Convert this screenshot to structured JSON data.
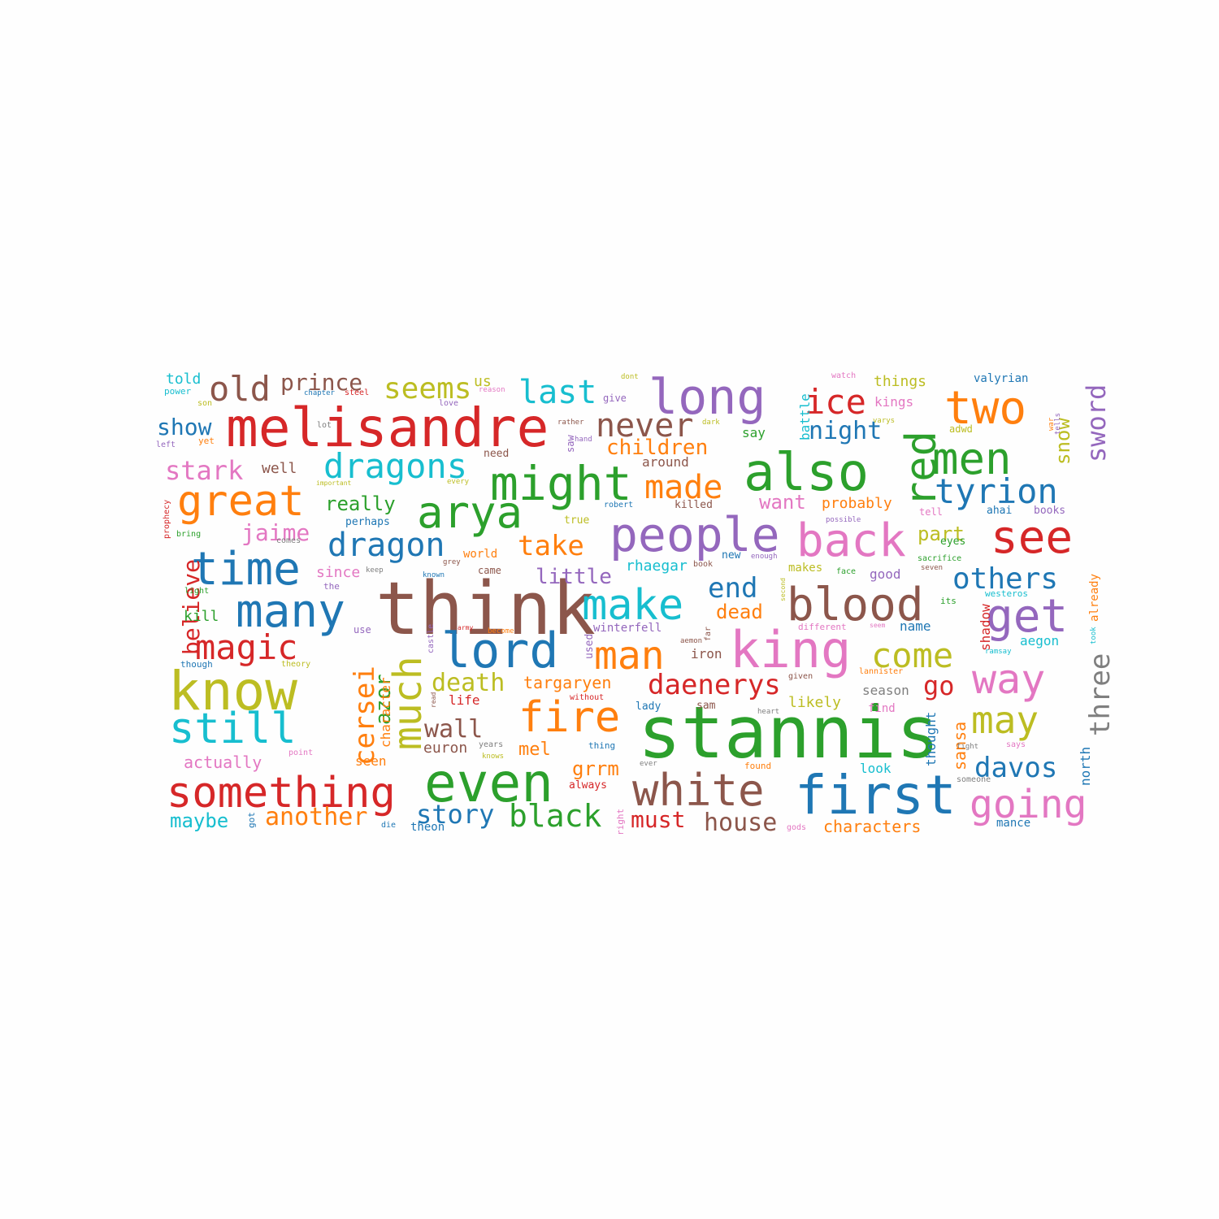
{
  "palette": {
    "blue": "#1f77b4",
    "orange": "#ff7f0e",
    "green": "#2ca02c",
    "red": "#d62728",
    "purple": "#9467bd",
    "brown": "#8c564b",
    "pink": "#e377c2",
    "gray": "#7f7f7f",
    "olive": "#bcbd22",
    "cyan": "#17becf"
  },
  "words": [
    {
      "text": "stannis",
      "color": "green"
    },
    {
      "text": "think",
      "color": "brown"
    },
    {
      "text": "melisandre",
      "color": "red"
    },
    {
      "text": "know",
      "color": "olive"
    },
    {
      "text": "also",
      "color": "green"
    },
    {
      "text": "even",
      "color": "green"
    },
    {
      "text": "first",
      "color": "blue"
    },
    {
      "text": "king",
      "color": "pink"
    },
    {
      "text": "people",
      "color": "purple"
    },
    {
      "text": "might",
      "color": "green"
    },
    {
      "text": "blood",
      "color": "brown"
    },
    {
      "text": "white",
      "color": "brown"
    },
    {
      "text": "something",
      "color": "red"
    },
    {
      "text": "back",
      "color": "pink"
    },
    {
      "text": "much",
      "color": "olive"
    },
    {
      "text": "lord",
      "color": "blue"
    },
    {
      "text": "long",
      "color": "purple"
    },
    {
      "text": "arya",
      "color": "green"
    },
    {
      "text": "fire",
      "color": "orange"
    },
    {
      "text": "still",
      "color": "cyan"
    },
    {
      "text": "make",
      "color": "cyan"
    },
    {
      "text": "many",
      "color": "blue"
    },
    {
      "text": "time",
      "color": "blue"
    },
    {
      "text": "great",
      "color": "orange"
    },
    {
      "text": "see",
      "color": "red"
    },
    {
      "text": "get",
      "color": "purple"
    },
    {
      "text": "way",
      "color": "pink"
    },
    {
      "text": "men",
      "color": "green"
    },
    {
      "text": "two",
      "color": "orange"
    },
    {
      "text": "red",
      "color": "green"
    },
    {
      "text": "man",
      "color": "orange"
    },
    {
      "text": "going",
      "color": "pink"
    },
    {
      "text": "may",
      "color": "olive"
    },
    {
      "text": "dragons",
      "color": "cyan"
    },
    {
      "text": "tyrion",
      "color": "blue"
    },
    {
      "text": "magic",
      "color": "red"
    },
    {
      "text": "come",
      "color": "olive"
    },
    {
      "text": "never",
      "color": "brown"
    },
    {
      "text": "last",
      "color": "cyan"
    },
    {
      "text": "old",
      "color": "brown"
    },
    {
      "text": "ice",
      "color": "red"
    },
    {
      "text": "black",
      "color": "green"
    },
    {
      "text": "dragon",
      "color": "blue"
    },
    {
      "text": "made",
      "color": "orange"
    },
    {
      "text": "three",
      "color": "gray"
    },
    {
      "text": "daenerys",
      "color": "red"
    },
    {
      "text": "others",
      "color": "blue"
    },
    {
      "text": "seems",
      "color": "olive"
    },
    {
      "text": "cersei",
      "color": "orange"
    },
    {
      "text": "take",
      "color": "orange"
    },
    {
      "text": "davos",
      "color": "blue"
    },
    {
      "text": "story",
      "color": "blue"
    },
    {
      "text": "stark",
      "color": "pink"
    },
    {
      "text": "house",
      "color": "brown"
    },
    {
      "text": "death",
      "color": "olive"
    },
    {
      "text": "sword",
      "color": "purple"
    },
    {
      "text": "wall",
      "color": "brown"
    },
    {
      "text": "another",
      "color": "orange"
    },
    {
      "text": "believe",
      "color": "red"
    },
    {
      "text": "end",
      "color": "blue"
    },
    {
      "text": "must",
      "color": "red"
    },
    {
      "text": "prince",
      "color": "brown"
    },
    {
      "text": "night",
      "color": "blue"
    },
    {
      "text": "jaime",
      "color": "pink"
    },
    {
      "text": "show",
      "color": "blue"
    },
    {
      "text": "children",
      "color": "orange"
    },
    {
      "text": "go",
      "color": "red"
    },
    {
      "text": "azor",
      "color": "green"
    },
    {
      "text": "little",
      "color": "purple"
    },
    {
      "text": "grrm",
      "color": "orange"
    },
    {
      "text": "snow",
      "color": "olive"
    },
    {
      "text": "want",
      "color": "pink"
    },
    {
      "text": "maybe",
      "color": "cyan"
    },
    {
      "text": "really",
      "color": "green"
    },
    {
      "text": "mel",
      "color": "orange"
    },
    {
      "text": "dead",
      "color": "orange"
    },
    {
      "text": "part",
      "color": "olive"
    },
    {
      "text": "targaryen",
      "color": "orange"
    },
    {
      "text": "characters",
      "color": "orange"
    },
    {
      "text": "sansa",
      "color": "orange"
    },
    {
      "text": "actually",
      "color": "pink"
    },
    {
      "text": "told",
      "color": "cyan"
    },
    {
      "text": "us",
      "color": "olive"
    },
    {
      "text": "well",
      "color": "brown"
    },
    {
      "text": "kill",
      "color": "green"
    },
    {
      "text": "probably",
      "color": "orange"
    },
    {
      "text": "likely",
      "color": "olive"
    },
    {
      "text": "euron",
      "color": "brown"
    },
    {
      "text": "rhaegar",
      "color": "cyan"
    },
    {
      "text": "since",
      "color": "pink"
    },
    {
      "text": "things",
      "color": "olive"
    },
    {
      "text": "kings",
      "color": "pink"
    },
    {
      "text": "season",
      "color": "gray"
    },
    {
      "text": "iron",
      "color": "brown"
    },
    {
      "text": "battle",
      "color": "cyan"
    },
    {
      "text": "seen",
      "color": "orange"
    },
    {
      "text": "good",
      "color": "purple"
    },
    {
      "text": "shadow",
      "color": "red"
    },
    {
      "text": "character",
      "color": "orange"
    },
    {
      "text": "aegon",
      "color": "cyan"
    },
    {
      "text": "thought",
      "color": "blue"
    },
    {
      "text": "around",
      "color": "brown"
    },
    {
      "text": "north",
      "color": "blue"
    },
    {
      "text": "theon",
      "color": "blue"
    },
    {
      "text": "world",
      "color": "orange"
    },
    {
      "text": "say",
      "color": "green"
    },
    {
      "text": "name",
      "color": "blue"
    },
    {
      "text": "look",
      "color": "cyan"
    },
    {
      "text": "life",
      "color": "red"
    },
    {
      "text": "valyrian",
      "color": "blue"
    },
    {
      "text": "already",
      "color": "orange"
    },
    {
      "text": "winterfell",
      "color": "purple"
    },
    {
      "text": "makes",
      "color": "olive"
    },
    {
      "text": "need",
      "color": "brown"
    },
    {
      "text": "mance",
      "color": "blue"
    },
    {
      "text": "adwd",
      "color": "olive"
    },
    {
      "text": "books",
      "color": "purple"
    },
    {
      "text": "ahai",
      "color": "blue"
    },
    {
      "text": "westeros",
      "color": "cyan"
    },
    {
      "text": "lady",
      "color": "blue"
    },
    {
      "text": "sam",
      "color": "brown"
    },
    {
      "text": "find",
      "color": "pink"
    },
    {
      "text": "tell",
      "color": "pink"
    },
    {
      "text": "eyes",
      "color": "green"
    },
    {
      "text": "its",
      "color": "green"
    },
    {
      "text": "new",
      "color": "blue"
    },
    {
      "text": "true",
      "color": "olive"
    },
    {
      "text": "perhaps",
      "color": "blue"
    },
    {
      "text": "killed",
      "color": "brown"
    },
    {
      "text": "came",
      "color": "brown"
    },
    {
      "text": "use",
      "color": "purple"
    },
    {
      "text": "different",
      "color": "pink"
    },
    {
      "text": "used",
      "color": "purple"
    },
    {
      "text": "always",
      "color": "red"
    },
    {
      "text": "thing",
      "color": "blue"
    },
    {
      "text": "though",
      "color": "blue"
    },
    {
      "text": "give",
      "color": "purple"
    },
    {
      "text": "power",
      "color": "cyan"
    },
    {
      "text": "found",
      "color": "orange"
    },
    {
      "text": "lannister",
      "color": "orange"
    },
    {
      "text": "got",
      "color": "blue"
    },
    {
      "text": "theory",
      "color": "olive"
    },
    {
      "text": "book",
      "color": "brown"
    },
    {
      "text": "sacrifice",
      "color": "green"
    },
    {
      "text": "robert",
      "color": "blue"
    },
    {
      "text": "without",
      "color": "red"
    },
    {
      "text": "light",
      "color": "green"
    },
    {
      "text": "bring",
      "color": "green"
    },
    {
      "text": "watch",
      "color": "pink"
    },
    {
      "text": "years",
      "color": "gray"
    },
    {
      "text": "son",
      "color": "olive"
    },
    {
      "text": "ramsay",
      "color": "cyan"
    },
    {
      "text": "prophecy",
      "color": "red"
    },
    {
      "text": "castle",
      "color": "purple"
    },
    {
      "text": "possible",
      "color": "purple"
    },
    {
      "text": "given",
      "color": "brown"
    },
    {
      "text": "dark",
      "color": "olive"
    },
    {
      "text": "point",
      "color": "pink"
    },
    {
      "text": "yet",
      "color": "orange"
    },
    {
      "text": "grey",
      "color": "brown"
    },
    {
      "text": "seem",
      "color": "pink"
    },
    {
      "text": "enough",
      "color": "purple"
    },
    {
      "text": "lot",
      "color": "gray"
    },
    {
      "text": "left",
      "color": "purple"
    },
    {
      "text": "face",
      "color": "green"
    },
    {
      "text": "someone",
      "color": "gray"
    },
    {
      "text": "important",
      "color": "olive"
    },
    {
      "text": "says",
      "color": "pink"
    },
    {
      "text": "varys",
      "color": "olive"
    },
    {
      "text": "seven",
      "color": "brown"
    },
    {
      "text": "steel",
      "color": "red"
    },
    {
      "text": "gods",
      "color": "pink"
    },
    {
      "text": "comes",
      "color": "gray"
    },
    {
      "text": "chapter",
      "color": "blue"
    },
    {
      "text": "hand",
      "color": "purple"
    },
    {
      "text": "second",
      "color": "olive"
    },
    {
      "text": "every",
      "color": "olive"
    },
    {
      "text": "keep",
      "color": "gray"
    },
    {
      "text": "fight",
      "color": "gray"
    },
    {
      "text": "reason",
      "color": "pink"
    },
    {
      "text": "ever",
      "color": "gray"
    },
    {
      "text": "far",
      "color": "brown"
    },
    {
      "text": "tells",
      "color": "purple"
    },
    {
      "text": "dont",
      "color": "olive"
    },
    {
      "text": "love",
      "color": "purple"
    },
    {
      "text": "army",
      "color": "red"
    },
    {
      "text": "heart",
      "color": "gray"
    },
    {
      "text": "known",
      "color": "blue"
    },
    {
      "text": "become",
      "color": "orange"
    },
    {
      "text": "rather",
      "color": "brown"
    },
    {
      "text": "saw",
      "color": "purple"
    },
    {
      "text": "knows",
      "color": "olive"
    },
    {
      "text": "read",
      "color": "brown"
    },
    {
      "text": "die",
      "color": "blue"
    },
    {
      "text": "took",
      "color": "cyan"
    },
    {
      "text": "the",
      "color": "purple"
    },
    {
      "text": "aemon",
      "color": "brown"
    },
    {
      "text": "war",
      "color": "orange"
    },
    {
      "text": "right",
      "color": "pink"
    }
  ]
}
